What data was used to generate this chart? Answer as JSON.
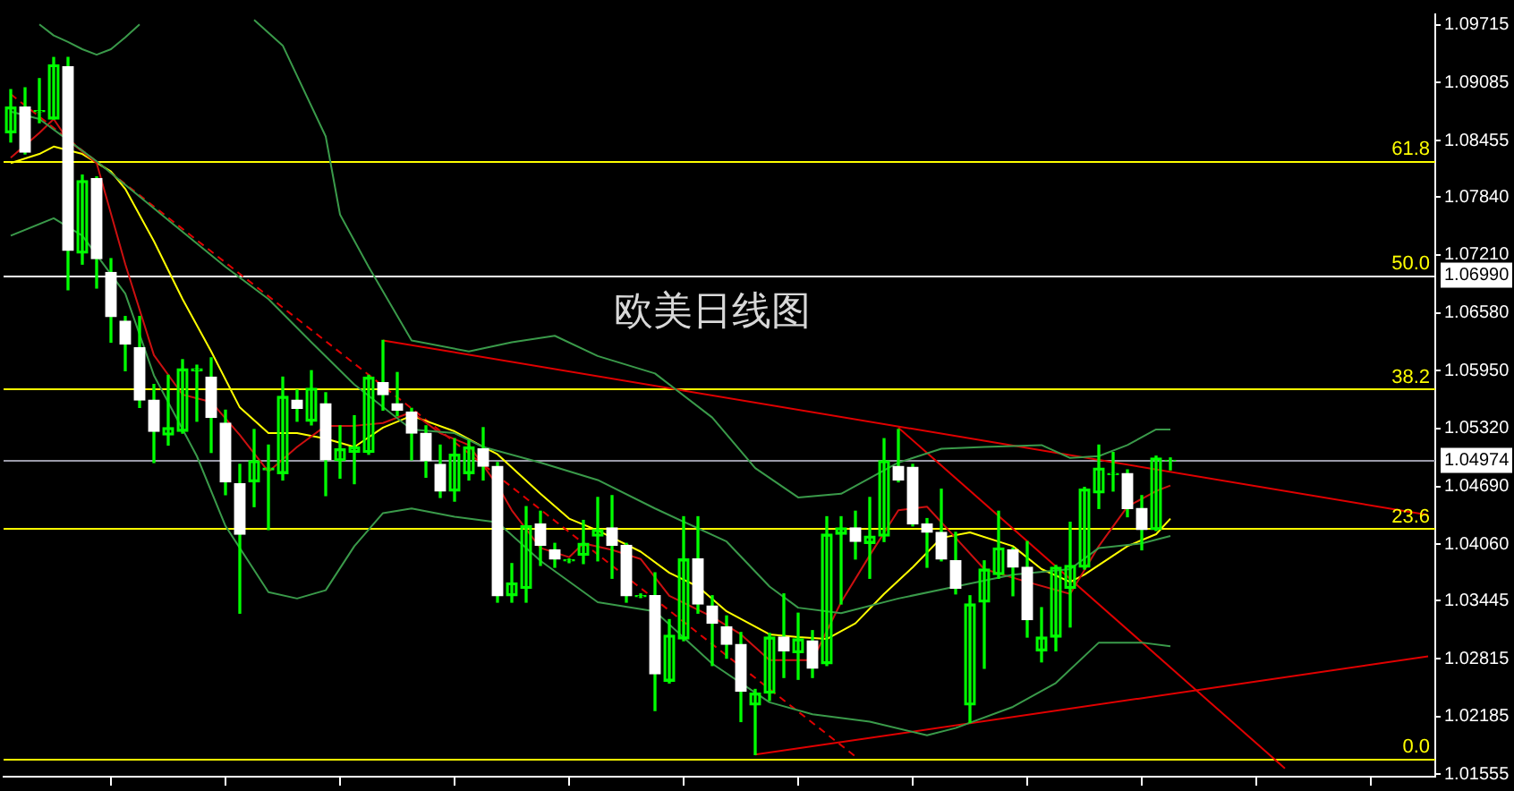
{
  "chart_data": {
    "type": "candlestick",
    "title": "欧美日线图",
    "categories": [
      null,
      null,
      null,
      null,
      null,
      null,
      null,
      null,
      null,
      null,
      null,
      null,
      null,
      null,
      null,
      null,
      null,
      null,
      null,
      null,
      null,
      null,
      null,
      null,
      null,
      null,
      null,
      null,
      null,
      null,
      null,
      null,
      null,
      null,
      null,
      null,
      null,
      null,
      null,
      null,
      null,
      null,
      null,
      null,
      null,
      null,
      null,
      null,
      null,
      null,
      null,
      null,
      null,
      null,
      null,
      null,
      null,
      null,
      null,
      null,
      null,
      null,
      null,
      null,
      null,
      null,
      null,
      null,
      null,
      null,
      null,
      null,
      null,
      null,
      null,
      null,
      null,
      null,
      null,
      null,
      null,
      null,
      null,
      null,
      null,
      null,
      null,
      null,
      null,
      null,
      null,
      null,
      null,
      null,
      null,
      null,
      null,
      null,
      null,
      null
    ],
    "color": "#00ff00",
    "ohlc": [
      [
        1.0854,
        1.0901,
        1.0844,
        1.0882
      ],
      [
        1.0882,
        1.0903,
        1.0831,
        1.0833
      ],
      [
        1.0877,
        1.0913,
        1.0865,
        1.0878
      ],
      [
        1.0869,
        1.0936,
        1.0869,
        1.0928
      ],
      [
        1.0926,
        1.0936,
        1.0683,
        1.0726
      ],
      [
        1.0723,
        1.0808,
        1.0711,
        1.0802
      ],
      [
        1.0804,
        1.0806,
        1.0685,
        1.0717
      ],
      [
        1.0702,
        1.0717,
        1.0626,
        1.0654
      ],
      [
        1.0649,
        1.0654,
        1.0595,
        1.0624
      ],
      [
        1.062,
        1.0654,
        1.0555,
        1.0563
      ],
      [
        1.0563,
        1.058,
        1.0495,
        1.0529
      ],
      [
        1.0525,
        1.059,
        1.0514,
        1.0533
      ],
      [
        1.0529,
        1.0607,
        1.0527,
        1.0597
      ],
      [
        1.0595,
        1.0601,
        1.054,
        1.0597
      ],
      [
        1.0588,
        1.0609,
        1.0506,
        1.0544
      ],
      [
        1.0538,
        1.0552,
        1.046,
        1.0474
      ],
      [
        1.0472,
        1.0493,
        1.0331,
        1.0417
      ],
      [
        1.0474,
        1.0531,
        1.0447,
        1.0497
      ],
      [
        1.0487,
        1.0514,
        1.0422,
        1.0489
      ],
      [
        1.0483,
        1.0588,
        1.0476,
        1.0567
      ],
      [
        1.0563,
        1.0574,
        1.054,
        1.0554
      ],
      [
        1.054,
        1.0595,
        1.0536,
        1.0576
      ],
      [
        1.0559,
        1.0571,
        1.0459,
        1.0498
      ],
      [
        1.0497,
        1.0535,
        1.0478,
        1.051
      ],
      [
        1.0506,
        1.0546,
        1.0472,
        1.0512
      ],
      [
        1.0506,
        1.059,
        1.0504,
        1.0588
      ],
      [
        1.0582,
        1.0628,
        1.0552,
        1.0569
      ],
      [
        1.0559,
        1.0593,
        1.0546,
        1.0552
      ],
      [
        1.055,
        1.0554,
        1.0498,
        1.0527
      ],
      [
        1.0527,
        1.0535,
        1.0479,
        1.0497
      ],
      [
        1.0493,
        1.0514,
        1.0457,
        1.0464
      ],
      [
        1.0464,
        1.0521,
        1.0453,
        1.0504
      ],
      [
        1.0483,
        1.0519,
        1.0476,
        1.0512
      ],
      [
        1.051,
        1.0533,
        1.0476,
        1.0491
      ],
      [
        1.0491,
        1.0495,
        1.0343,
        1.035
      ],
      [
        1.035,
        1.0385,
        1.0343,
        1.0364
      ],
      [
        1.0358,
        1.0447,
        1.0343,
        1.0426
      ],
      [
        1.0428,
        1.0442,
        1.0383,
        1.0405
      ],
      [
        1.04,
        1.0407,
        1.0381,
        1.039
      ],
      [
        1.0388,
        1.039,
        1.0386,
        1.0389
      ],
      [
        1.0394,
        1.0432,
        1.0385,
        1.0407
      ],
      [
        1.0415,
        1.0457,
        1.0388,
        1.0422
      ],
      [
        1.0424,
        1.0459,
        1.0369,
        1.0405
      ],
      [
        1.0405,
        1.0407,
        1.0343,
        1.035
      ],
      [
        1.0349,
        1.0352,
        1.0348,
        1.035
      ],
      [
        1.035,
        1.0375,
        1.0225,
        1.0265
      ],
      [
        1.0257,
        1.0324,
        1.0255,
        1.0307
      ],
      [
        1.0303,
        1.0436,
        1.0301,
        1.039
      ],
      [
        1.039,
        1.0436,
        1.0331,
        1.0341
      ],
      [
        1.0339,
        1.035,
        1.0274,
        1.032
      ],
      [
        1.0316,
        1.0328,
        1.0282,
        1.0297
      ],
      [
        1.0297,
        1.031,
        1.0213,
        1.0246
      ],
      [
        1.0231,
        1.0248,
        1.0177,
        1.0244
      ],
      [
        1.0244,
        1.0309,
        1.0236,
        1.0305
      ],
      [
        1.0305,
        1.0352,
        1.0261,
        1.029
      ],
      [
        1.0288,
        1.0331,
        1.0259,
        1.0303
      ],
      [
        1.0301,
        1.0312,
        1.0261,
        1.0271
      ],
      [
        1.0276,
        1.0436,
        1.0274,
        1.0417
      ],
      [
        1.0417,
        1.0436,
        1.0341,
        1.0424
      ],
      [
        1.0424,
        1.0442,
        1.039,
        1.0409
      ],
      [
        1.0407,
        1.0457,
        1.0369,
        1.0415
      ],
      [
        1.0415,
        1.0521,
        1.0409,
        1.0497
      ],
      [
        1.0491,
        1.0531,
        1.0474,
        1.0476
      ],
      [
        1.049,
        1.0493,
        1.0426,
        1.0428
      ],
      [
        1.0428,
        1.0434,
        1.0381,
        1.0419
      ],
      [
        1.0419,
        1.0466,
        1.0388,
        1.039
      ],
      [
        1.0388,
        1.0419,
        1.0352,
        1.0358
      ],
      [
        1.0231,
        1.035,
        1.0212,
        1.0341
      ],
      [
        1.0343,
        1.0388,
        1.0271,
        1.0379
      ],
      [
        1.0373,
        1.0442,
        1.0369,
        1.0402
      ],
      [
        1.04,
        1.0402,
        1.035,
        1.0381
      ],
      [
        1.0381,
        1.0409,
        1.0305,
        1.0324
      ],
      [
        1.029,
        1.0337,
        1.0278,
        1.0305
      ],
      [
        1.0305,
        1.0383,
        1.029,
        1.0381
      ],
      [
        1.0358,
        1.043,
        1.0316,
        1.0383
      ],
      [
        1.0381,
        1.0468,
        1.0379,
        1.0466
      ],
      [
        1.0462,
        1.0514,
        1.0445,
        1.0489
      ],
      [
        1.0482,
        1.0506,
        1.0464,
        1.0483
      ],
      [
        1.0483,
        1.0487,
        1.0436,
        1.0445
      ],
      [
        1.0445,
        1.0459,
        1.04,
        1.0422
      ],
      [
        1.0422,
        1.0502,
        1.0421,
        1.05
      ],
      [
        1.0497,
        1.05,
        1.0487,
        1.04974
      ],
      null,
      null,
      null,
      null,
      null,
      null,
      null,
      null,
      null,
      null,
      null,
      null,
      null,
      null,
      null,
      null,
      null,
      null
    ],
    "colors": [
      "#00ff00",
      "#ffffff",
      "#00ff00",
      "#00ff00",
      "#ffffff",
      "#00ff00",
      "#ffffff",
      "#ffffff",
      "#ffffff",
      "#ffffff",
      "#ffffff",
      "#00ff00",
      "#00ff00",
      "#00ff00",
      "#ffffff",
      "#ffffff",
      "#ffffff",
      "#00ff00",
      "#00ff00",
      "#00ff00",
      "#ffffff",
      "#00ff00",
      "#ffffff",
      "#00ff00",
      "#00ff00",
      "#00ff00",
      "#ffffff",
      "#ffffff",
      "#ffffff",
      "#ffffff",
      "#ffffff",
      "#00ff00",
      "#00ff00",
      "#ffffff",
      "#ffffff",
      "#00ff00",
      "#00ff00",
      "#ffffff",
      "#ffffff",
      "#00ff00",
      "#00ff00",
      "#00ff00",
      "#ffffff",
      "#ffffff",
      "#00ff00",
      "#ffffff",
      "#00ff00",
      "#00ff00",
      "#ffffff",
      "#ffffff",
      "#ffffff",
      "#ffffff",
      "#00ff00",
      "#00ff00",
      "#ffffff",
      "#00ff00",
      "#ffffff",
      "#00ff00",
      "#00ff00",
      "#ffffff",
      "#00ff00",
      "#00ff00",
      "#ffffff",
      "#ffffff",
      "#ffffff",
      "#ffffff",
      "#ffffff",
      "#00ff00",
      "#00ff00",
      "#00ff00",
      "#ffffff",
      "#ffffff",
      "#00ff00",
      "#00ff00",
      "#00ff00",
      "#00ff00",
      "#00ff00",
      "#00ff00",
      "#ffffff",
      "#ffffff",
      "#00ff00",
      "#00ff00",
      null,
      null,
      null,
      null,
      null,
      null,
      null,
      null,
      null,
      null,
      null,
      null,
      null,
      null,
      null,
      null,
      null,
      null
    ],
    "series": [
      {
        "type": "line",
        "color": "#3a9a4a",
        "values": [
          null,
          null,
          1.0972,
          1.096,
          1.0953,
          1.0945,
          1.0939,
          1.0945,
          1.0958,
          1.0972,
          null,
          null,
          null,
          null,
          null,
          null,
          null,
          null,
          null,
          null,
          null,
          null,
          null,
          null,
          null,
          null,
          null,
          null,
          null,
          null,
          null,
          null,
          null,
          null,
          null,
          null,
          null,
          null,
          null,
          null,
          null,
          null,
          null,
          null,
          null,
          null,
          null,
          null,
          null,
          null,
          null,
          null,
          null,
          null,
          null,
          null,
          null,
          null,
          null,
          null,
          null,
          null,
          null,
          null,
          null,
          null,
          null,
          null,
          null,
          null,
          null,
          null,
          null,
          null,
          null,
          null,
          null,
          null,
          null,
          null,
          null,
          null,
          null,
          null,
          null,
          null,
          null,
          null,
          null,
          null,
          null,
          null,
          null,
          null,
          null,
          null,
          null,
          null,
          null,
          null
        ]
      },
      {
        "type": "line",
        "color": "#3a9a4a",
        "values": [
          null,
          null,
          null,
          null,
          null,
          null,
          null,
          null,
          null,
          null,
          null,
          null,
          null,
          null,
          null,
          null,
          null,
          1.0977,
          null,
          1.0949,
          null,
          null,
          1.085,
          1.0765,
          null,
          1.0708,
          null,
          null,
          1.0628,
          null,
          null,
          null,
          1.0616,
          null,
          null,
          1.0626,
          null,
          null,
          1.0633,
          null,
          null,
          1.0611,
          null,
          null,
          null,
          1.0592,
          null,
          null,
          null,
          1.0544,
          null,
          null,
          1.0489,
          null,
          null,
          1.0457,
          null,
          null,
          1.0461,
          null,
          null,
          null,
          1.0495,
          null,
          null,
          1.051,
          null,
          null,
          1.0512,
          null,
          null,
          null,
          1.0514,
          null,
          1.05,
          null,
          1.0502,
          null,
          1.0514,
          null,
          1.0531,
          1.0531,
          null,
          null,
          null,
          null,
          null,
          null,
          null,
          null,
          null,
          null,
          null,
          null,
          null,
          null,
          null,
          null,
          null,
          null
        ]
      },
      {
        "type": "line",
        "color": "#3a9a4a",
        "values": [
          1.0877,
          null,
          1.0869,
          null,
          1.0846,
          null,
          1.0823,
          null,
          null,
          null,
          null,
          1.0759,
          null,
          null,
          null,
          1.0708,
          null,
          null,
          1.0673,
          null,
          null,
          1.0626,
          null,
          null,
          1.058,
          null,
          null,
          null,
          1.0531,
          null,
          null,
          1.0527,
          null,
          1.0512,
          null,
          null,
          null,
          1.0495,
          null,
          null,
          null,
          1.0476,
          null,
          null,
          null,
          1.0445,
          null,
          null,
          null,
          null,
          1.0409,
          null,
          null,
          1.036,
          null,
          1.0337,
          null,
          null,
          1.0331,
          null,
          null,
          null,
          1.0347,
          null,
          null,
          null,
          1.036,
          null,
          null,
          null,
          1.0373,
          null,
          null,
          null,
          1.0379,
          null,
          1.0402,
          null,
          null,
          1.0407,
          null,
          1.0415,
          null,
          null,
          null,
          null,
          null,
          null,
          null,
          null,
          null,
          null,
          null,
          null,
          null,
          null,
          null,
          null,
          null,
          null
        ]
      },
      {
        "type": "line",
        "color": "#3a9a4a",
        "values": [
          1.0742,
          null,
          null,
          1.0761,
          null,
          1.0742,
          null,
          null,
          1.0679,
          null,
          1.059,
          null,
          null,
          1.0502,
          null,
          1.0426,
          null,
          null,
          1.0354,
          null,
          1.0347,
          null,
          1.0356,
          null,
          1.0404,
          null,
          1.044,
          null,
          1.0445,
          null,
          null,
          1.0436,
          null,
          null,
          1.043,
          null,
          null,
          1.0388,
          null,
          null,
          null,
          1.0343,
          null,
          null,
          null,
          1.0333,
          null,
          null,
          null,
          1.0276,
          null,
          null,
          null,
          1.0234,
          null,
          null,
          1.0221,
          null,
          null,
          null,
          1.0213,
          null,
          null,
          null,
          1.0198,
          null,
          1.0206,
          null,
          null,
          null,
          1.0229,
          null,
          null,
          1.0255,
          null,
          null,
          1.0299,
          null,
          null,
          1.0299,
          null,
          1.0295,
          null,
          null,
          null,
          null,
          null,
          null,
          null,
          null,
          null,
          null,
          null,
          null,
          null,
          null,
          null,
          null,
          null,
          null
        ]
      },
      {
        "type": "line",
        "color": "#cc1010",
        "values": [
          1.0827,
          null,
          1.0854,
          1.0869,
          1.0846,
          null,
          1.0821,
          null,
          1.0711,
          null,
          1.0612,
          null,
          1.0569,
          null,
          1.0561,
          null,
          1.0525,
          null,
          1.0485,
          null,
          1.0512,
          null,
          1.0535,
          null,
          1.0535,
          null,
          1.0538,
          null,
          1.055,
          null,
          1.0527,
          null,
          1.0514,
          null,
          1.047,
          1.0443,
          null,
          1.0402,
          null,
          1.0392,
          1.0407,
          null,
          1.04,
          null,
          1.039,
          null,
          1.035,
          null,
          null,
          1.0327,
          null,
          1.0308,
          null,
          1.028,
          null,
          null,
          1.028,
          null,
          1.0343,
          null,
          1.0394,
          null,
          1.0443,
          null,
          1.0447,
          null,
          1.0413,
          null,
          1.0379,
          null,
          null,
          1.0365,
          null,
          null,
          1.0352,
          null,
          1.0404,
          null,
          1.0447,
          null,
          1.0464,
          1.047,
          null,
          null,
          null,
          null,
          null,
          null,
          null,
          null,
          null,
          null,
          null,
          null,
          null,
          null,
          null,
          null,
          null,
          null
        ]
      },
      {
        "type": "line",
        "color": "#ffff00",
        "values": [
          1.0821,
          null,
          1.0831,
          1.0839,
          null,
          1.0831,
          null,
          1.0812,
          1.0793,
          null,
          1.0736,
          null,
          1.0673,
          null,
          1.0616,
          null,
          1.0555,
          null,
          1.0527,
          null,
          1.0527,
          null,
          1.0521,
          null,
          1.0512,
          null,
          1.0533,
          null,
          1.0546,
          null,
          null,
          1.0529,
          null,
          1.0512,
          1.0504,
          null,
          null,
          1.0461,
          null,
          1.0434,
          null,
          1.0421,
          null,
          null,
          1.0398,
          null,
          1.0375,
          null,
          1.036,
          null,
          1.0333,
          null,
          null,
          1.0308,
          null,
          1.0305,
          null,
          1.0303,
          null,
          1.032,
          null,
          1.0352,
          null,
          1.0381,
          null,
          1.0413,
          null,
          1.0419,
          null,
          null,
          1.0404,
          null,
          1.0379,
          null,
          1.0365,
          1.0373,
          null,
          null,
          1.0404,
          null,
          1.0417,
          1.0434,
          null,
          null,
          null,
          null,
          null,
          null,
          null,
          null,
          null,
          null,
          null,
          null,
          null,
          null,
          null,
          null,
          null,
          null
        ]
      },
      {
        "type": "line",
        "color": "#e00000",
        "line_style": "dashed",
        "values": [
          1.0896,
          null,
          null,
          null,
          null,
          null,
          null,
          null,
          null,
          null,
          null,
          null,
          null,
          null,
          null,
          null,
          null,
          null,
          null,
          null,
          null,
          null,
          null,
          null,
          null,
          null,
          null,
          null,
          null,
          null,
          null,
          null,
          null,
          null,
          null,
          null,
          null,
          null,
          null,
          null,
          null,
          null,
          null,
          null,
          null,
          null,
          null,
          null,
          null,
          null,
          null,
          null,
          null,
          null,
          null,
          null,
          null,
          null,
          null,
          1.0175,
          null,
          null,
          null,
          null,
          null,
          null,
          null,
          null,
          null,
          null,
          null,
          null,
          null,
          null,
          null,
          null,
          null,
          null,
          null,
          null,
          null,
          null,
          null,
          null,
          null,
          null,
          null,
          null,
          null,
          null,
          null,
          null,
          null,
          null,
          null,
          null,
          null,
          null,
          null,
          null
        ]
      },
      {
        "type": "line",
        "color": "#e00000",
        "values": [
          null,
          null,
          null,
          null,
          null,
          null,
          null,
          null,
          null,
          null,
          null,
          null,
          null,
          null,
          null,
          null,
          null,
          null,
          null,
          null,
          null,
          null,
          null,
          null,
          null,
          null,
          1.0628,
          null,
          null,
          null,
          null,
          null,
          null,
          null,
          null,
          null,
          null,
          null,
          null,
          null,
          null,
          null,
          null,
          null,
          null,
          null,
          null,
          null,
          null,
          null,
          null,
          null,
          null,
          null,
          null,
          null,
          null,
          null,
          null,
          null,
          null,
          null,
          null,
          null,
          null,
          null,
          null,
          null,
          null,
          null,
          null,
          null,
          null,
          null,
          null,
          null,
          null,
          null,
          null,
          null,
          null,
          null,
          null,
          null,
          null,
          null,
          null,
          null,
          null,
          null,
          null,
          null,
          null,
          null,
          null,
          null,
          null,
          null,
          null,
          1.0438
        ]
      },
      {
        "type": "line",
        "color": "#e00000",
        "values": [
          null,
          null,
          null,
          null,
          null,
          null,
          null,
          null,
          null,
          null,
          null,
          null,
          null,
          null,
          null,
          null,
          null,
          null,
          null,
          null,
          null,
          null,
          null,
          null,
          null,
          null,
          null,
          null,
          null,
          null,
          null,
          null,
          null,
          null,
          null,
          null,
          null,
          null,
          null,
          null,
          null,
          null,
          null,
          null,
          null,
          null,
          null,
          null,
          null,
          null,
          null,
          null,
          null,
          null,
          null,
          null,
          null,
          null,
          null,
          null,
          null,
          null,
          1.0533,
          null,
          null,
          null,
          null,
          null,
          null,
          null,
          null,
          null,
          null,
          null,
          null,
          null,
          null,
          null,
          null,
          null,
          null,
          null,
          null,
          null,
          null,
          null,
          null,
          null,
          null,
          1.0162,
          null,
          null,
          null,
          null,
          null,
          null,
          null,
          null,
          null,
          null
        ]
      },
      {
        "type": "line",
        "color": "#e00000",
        "values": [
          null,
          null,
          null,
          null,
          null,
          null,
          null,
          null,
          null,
          null,
          null,
          null,
          null,
          null,
          null,
          null,
          null,
          null,
          null,
          null,
          null,
          null,
          null,
          null,
          null,
          null,
          null,
          null,
          null,
          null,
          null,
          null,
          null,
          null,
          null,
          null,
          null,
          null,
          null,
          null,
          null,
          null,
          null,
          null,
          null,
          null,
          null,
          null,
          null,
          null,
          null,
          null,
          1.0177,
          null,
          null,
          null,
          null,
          null,
          null,
          null,
          null,
          null,
          null,
          null,
          null,
          null,
          null,
          null,
          null,
          null,
          null,
          null,
          null,
          null,
          null,
          null,
          null,
          null,
          null,
          null,
          null,
          null,
          null,
          null,
          null,
          null,
          null,
          null,
          null,
          null,
          null,
          null,
          null,
          null,
          null,
          null,
          null,
          null,
          null,
          1.0284
        ]
      }
    ],
    "ylim": [
      1.0153,
      1.0983
    ],
    "yticks": [
      1.09715,
      1.09085,
      1.08455,
      {
        "value": 1.0784,
        "label": "1.07840"
      },
      {
        "value": 1.0721,
        "label": "1.07210"
      },
      {
        "value": 1.0658,
        "label": "1.06580"
      },
      {
        "value": 1.0595,
        "label": "1.05950"
      },
      {
        "value": 1.0532,
        "label": "1.05320"
      },
      {
        "value": 1.0469,
        "label": "1.04690"
      },
      {
        "value": 1.0406,
        "label": "1.04060"
      },
      1.03445,
      1.02815,
      1.02185,
      1.01555
    ],
    "ref_lines": [
      {
        "axis": "y",
        "value": 1.0823,
        "color": "#ffff00"
      },
      {
        "axis": "y",
        "value": 1.0575,
        "color": "#ffff00"
      },
      {
        "axis": "y",
        "value": 1.0423,
        "color": "#ffff00"
      },
      {
        "axis": "y",
        "value": 1.0173,
        "color": "#ffff00"
      },
      {
        "axis": "y",
        "value": 1.0699,
        "label": "1.06990",
        "color": "#ffffff"
      },
      {
        "axis": "y",
        "value": 1.04974,
        "label": "1.04974",
        "color": "#9a9aa8"
      }
    ],
    "annotations": [
      {
        "text": "61.8",
        "y": 1.0823
      },
      {
        "text": "50.0",
        "y": 1.0699
      },
      {
        "text": "38.2",
        "y": 1.0575
      },
      {
        "text": "23.6",
        "y": 1.0423
      },
      {
        "text": "0.0",
        "y": 1.0173
      }
    ],
    "legend": false
  }
}
